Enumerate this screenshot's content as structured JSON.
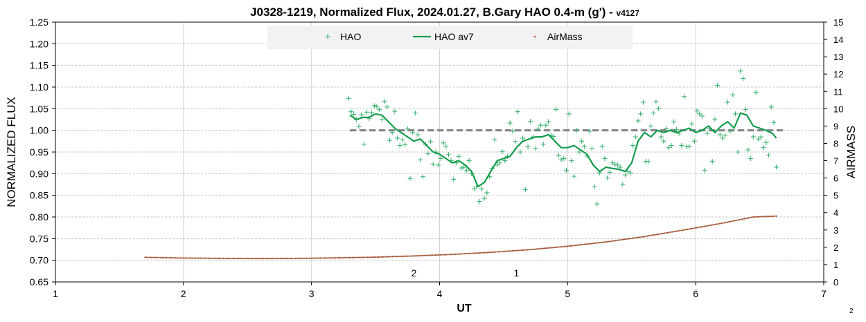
{
  "chart_data": {
    "type": "scatter",
    "title": "J0328-1219, Normalized Flux, 2024.01.27, B.Gary HAO 0.4-m (g') - ",
    "title_suffix": "v4127",
    "xlabel": "UT",
    "ylabel": "NORMALIZED FLUX",
    "y2label": "AIRMASS",
    "xlim": [
      1,
      7
    ],
    "ylim": [
      0.65,
      1.25
    ],
    "y2lim": [
      0,
      15
    ],
    "x_ticks": [
      "1",
      "2",
      "3",
      "4",
      "5",
      "6",
      "7"
    ],
    "y_ticks": [
      "0.65",
      "0.70",
      "0.75",
      "0.80",
      "0.85",
      "0.90",
      "0.95",
      "1.00",
      "1.05",
      "1.10",
      "1.15",
      "1.20",
      "1.25"
    ],
    "y2_ticks": [
      "0",
      "1",
      "2",
      "3",
      "4",
      "5",
      "6",
      "7",
      "8",
      "9",
      "10",
      "11",
      "12",
      "13",
      "14",
      "15"
    ],
    "grid": true,
    "legend_position": "top",
    "colors": {
      "hao": "#3cb371",
      "hao_av7": "#129c4b",
      "airmass": "#a0522d",
      "reference": "#808080"
    },
    "series": [
      {
        "name": "HAO",
        "marker": "plus",
        "points": [
          [
            3.29,
            1.074
          ],
          [
            3.31,
            1.043
          ],
          [
            3.33,
            1.037
          ],
          [
            3.35,
            1.025
          ],
          [
            3.37,
            1.009
          ],
          [
            3.39,
            1.036
          ],
          [
            3.41,
            0.968
          ],
          [
            3.43,
            1.042
          ],
          [
            3.45,
            1.027
          ],
          [
            3.47,
            1.041
          ],
          [
            3.49,
            1.057
          ],
          [
            3.51,
            1.055
          ],
          [
            3.53,
            1.048
          ],
          [
            3.55,
            1.025
          ],
          [
            3.57,
            1.067
          ],
          [
            3.59,
            1.054
          ],
          [
            3.61,
            0.977
          ],
          [
            3.63,
            0.995
          ],
          [
            3.65,
            1.044
          ],
          [
            3.67,
            0.982
          ],
          [
            3.69,
            0.965
          ],
          [
            3.71,
            0.978
          ],
          [
            3.73,
            0.967
          ],
          [
            3.75,
            1.004
          ],
          [
            3.77,
            0.889
          ],
          [
            3.79,
            0.995
          ],
          [
            3.81,
            1.04
          ],
          [
            3.83,
            0.99
          ],
          [
            3.85,
            0.932
          ],
          [
            3.87,
            0.893
          ],
          [
            3.89,
            0.968
          ],
          [
            3.91,
            0.946
          ],
          [
            3.93,
            0.974
          ],
          [
            3.95,
            0.922
          ],
          [
            3.97,
            0.95
          ],
          [
            3.99,
            0.92
          ],
          [
            4.01,
            0.935
          ],
          [
            4.03,
            0.971
          ],
          [
            4.05,
            0.963
          ],
          [
            4.07,
            0.944
          ],
          [
            4.09,
            0.93
          ],
          [
            4.11,
            0.887
          ],
          [
            4.13,
            0.925
          ],
          [
            4.15,
            0.94
          ],
          [
            4.17,
            0.913
          ],
          [
            4.19,
            0.915
          ],
          [
            4.21,
            0.907
          ],
          [
            4.23,
            0.93
          ],
          [
            4.25,
            0.9
          ],
          [
            4.27,
            0.865
          ],
          [
            4.29,
            0.87
          ],
          [
            4.31,
            0.836
          ],
          [
            4.33,
            0.865
          ],
          [
            4.35,
            0.843
          ],
          [
            4.37,
            0.856
          ],
          [
            4.39,
            0.893
          ],
          [
            4.41,
            0.912
          ],
          [
            4.43,
            0.978
          ],
          [
            4.45,
            0.92
          ],
          [
            4.47,
            0.925
          ],
          [
            4.49,
            0.951
          ],
          [
            4.51,
            0.93
          ],
          [
            4.53,
            0.94
          ],
          [
            4.55,
            1.017
          ],
          [
            4.57,
            0.998
          ],
          [
            4.59,
            0.974
          ],
          [
            4.61,
            1.043
          ],
          [
            4.63,
            0.95
          ],
          [
            4.65,
            0.982
          ],
          [
            4.67,
            0.863
          ],
          [
            4.69,
            0.962
          ],
          [
            4.71,
            1.021
          ],
          [
            4.73,
            0.985
          ],
          [
            4.75,
            0.958
          ],
          [
            4.77,
            1.003
          ],
          [
            4.79,
            1.012
          ],
          [
            4.81,
            0.968
          ],
          [
            4.83,
            1.012
          ],
          [
            4.85,
            1.02
          ],
          [
            4.87,
            0.989
          ],
          [
            4.89,
            0.986
          ],
          [
            4.91,
            1.048
          ],
          [
            4.93,
            0.942
          ],
          [
            4.95,
            0.932
          ],
          [
            4.97,
            0.935
          ],
          [
            4.99,
            0.908
          ],
          [
            5.01,
            1.038
          ],
          [
            5.03,
            0.93
          ],
          [
            5.05,
            0.894
          ],
          [
            5.07,
            1.0
          ],
          [
            5.09,
            0.95
          ],
          [
            5.11,
            0.975
          ],
          [
            5.13,
            0.962
          ],
          [
            5.15,
            0.941
          ],
          [
            5.17,
            0.998
          ],
          [
            5.19,
            0.958
          ],
          [
            5.21,
            0.87
          ],
          [
            5.23,
            0.83
          ],
          [
            5.25,
            0.902
          ],
          [
            5.27,
            0.963
          ],
          [
            5.29,
            0.935
          ],
          [
            5.31,
            0.89
          ],
          [
            5.33,
            0.903
          ],
          [
            5.35,
            0.925
          ],
          [
            5.37,
            0.921
          ],
          [
            5.39,
            0.92
          ],
          [
            5.41,
            0.915
          ],
          [
            5.43,
            0.875
          ],
          [
            5.45,
            0.897
          ],
          [
            5.47,
            0.905
          ],
          [
            5.49,
            0.902
          ],
          [
            5.51,
            0.965
          ],
          [
            5.53,
            0.985
          ],
          [
            5.55,
            1.022
          ],
          [
            5.57,
            1.038
          ],
          [
            5.59,
            1.065
          ],
          [
            5.61,
            0.928
          ],
          [
            5.63,
            0.928
          ],
          [
            5.65,
            1.01
          ],
          [
            5.67,
            1.04
          ],
          [
            5.69,
            1.066
          ],
          [
            5.71,
            1.05
          ],
          [
            5.73,
            0.985
          ],
          [
            5.75,
            0.975
          ],
          [
            5.77,
            1.005
          ],
          [
            5.79,
            0.96
          ],
          [
            5.81,
            0.965
          ],
          [
            5.83,
            1.02
          ],
          [
            5.85,
            1.002
          ],
          [
            5.87,
            0.993
          ],
          [
            5.89,
            0.965
          ],
          [
            5.91,
            1.078
          ],
          [
            5.93,
            0.962
          ],
          [
            5.95,
            0.963
          ],
          [
            5.97,
            1.015
          ],
          [
            5.99,
            0.975
          ],
          [
            6.01,
            1.045
          ],
          [
            6.03,
            1.038
          ],
          [
            6.05,
            1.033
          ],
          [
            6.07,
            0.908
          ],
          [
            6.09,
            0.993
          ],
          [
            6.11,
            1.005
          ],
          [
            6.13,
            0.928
          ],
          [
            6.15,
            1.026
          ],
          [
            6.17,
            1.104
          ],
          [
            6.19,
            0.99
          ],
          [
            6.21,
            0.982
          ],
          [
            6.23,
            0.989
          ],
          [
            6.25,
            1.065
          ],
          [
            6.27,
            0.998
          ],
          [
            6.29,
            1.082
          ],
          [
            6.31,
            1.038
          ],
          [
            6.33,
            0.95
          ],
          [
            6.35,
            1.137
          ],
          [
            6.37,
            1.12
          ],
          [
            6.39,
            1.048
          ],
          [
            6.41,
            0.955
          ],
          [
            6.43,
            0.935
          ],
          [
            6.45,
            0.985
          ],
          [
            6.47,
            1.088
          ],
          [
            6.49,
            0.98
          ],
          [
            6.51,
            0.985
          ],
          [
            6.53,
            0.96
          ],
          [
            6.55,
            0.972
          ],
          [
            6.57,
            0.943
          ],
          [
            6.59,
            1.054
          ],
          [
            6.61,
            1.018
          ],
          [
            6.63,
            0.915
          ]
        ]
      },
      {
        "name": "HAO av7",
        "marker": "line",
        "points": [
          [
            3.3,
            1.035
          ],
          [
            3.35,
            1.025
          ],
          [
            3.4,
            1.03
          ],
          [
            3.45,
            1.03
          ],
          [
            3.5,
            1.038
          ],
          [
            3.55,
            1.035
          ],
          [
            3.6,
            1.02
          ],
          [
            3.65,
            1.005
          ],
          [
            3.7,
            0.995
          ],
          [
            3.75,
            0.985
          ],
          [
            3.8,
            0.975
          ],
          [
            3.85,
            0.98
          ],
          [
            3.9,
            0.965
          ],
          [
            3.95,
            0.95
          ],
          [
            4.0,
            0.945
          ],
          [
            4.05,
            0.935
          ],
          [
            4.1,
            0.925
          ],
          [
            4.15,
            0.93
          ],
          [
            4.2,
            0.92
          ],
          [
            4.25,
            0.905
          ],
          [
            4.3,
            0.87
          ],
          [
            4.35,
            0.88
          ],
          [
            4.4,
            0.905
          ],
          [
            4.45,
            0.93
          ],
          [
            4.5,
            0.935
          ],
          [
            4.55,
            0.94
          ],
          [
            4.6,
            0.96
          ],
          [
            4.65,
            0.975
          ],
          [
            4.7,
            0.98
          ],
          [
            4.75,
            0.985
          ],
          [
            4.8,
            0.985
          ],
          [
            4.85,
            0.99
          ],
          [
            4.9,
            0.975
          ],
          [
            4.95,
            0.96
          ],
          [
            5.0,
            0.96
          ],
          [
            5.05,
            0.965
          ],
          [
            5.1,
            0.955
          ],
          [
            5.15,
            0.945
          ],
          [
            5.2,
            0.92
          ],
          [
            5.25,
            0.905
          ],
          [
            5.3,
            0.915
          ],
          [
            5.35,
            0.912
          ],
          [
            5.4,
            0.91
          ],
          [
            5.45,
            0.905
          ],
          [
            5.5,
            0.925
          ],
          [
            5.55,
            0.975
          ],
          [
            5.6,
            0.995
          ],
          [
            5.65,
            0.985
          ],
          [
            5.7,
            1.0
          ],
          [
            5.75,
            0.995
          ],
          [
            5.8,
            1.0
          ],
          [
            5.85,
            0.995
          ],
          [
            5.9,
            1.0
          ],
          [
            5.95,
            1.005
          ],
          [
            6.0,
            0.995
          ],
          [
            6.05,
            1.0
          ],
          [
            6.1,
            1.01
          ],
          [
            6.15,
            0.995
          ],
          [
            6.2,
            1.01
          ],
          [
            6.25,
            1.02
          ],
          [
            6.3,
            1.005
          ],
          [
            6.35,
            1.04
          ],
          [
            6.4,
            1.035
          ],
          [
            6.45,
            1.01
          ],
          [
            6.5,
            1.005
          ],
          [
            6.55,
            1.0
          ],
          [
            6.6,
            0.993
          ],
          [
            6.63,
            0.982
          ]
        ]
      },
      {
        "name": "AirMass",
        "marker": "dot",
        "axis": "right",
        "points": [
          [
            1.7,
            1.42
          ],
          [
            2.0,
            1.38
          ],
          [
            2.3,
            1.36
          ],
          [
            2.6,
            1.35
          ],
          [
            2.9,
            1.36
          ],
          [
            3.2,
            1.39
          ],
          [
            3.5,
            1.43
          ],
          [
            3.8,
            1.5
          ],
          [
            4.1,
            1.59
          ],
          [
            4.4,
            1.71
          ],
          [
            4.7,
            1.86
          ],
          [
            5.0,
            2.06
          ],
          [
            5.3,
            2.31
          ],
          [
            5.6,
            2.62
          ],
          [
            5.9,
            2.99
          ],
          [
            6.2,
            3.38
          ],
          [
            6.45,
            3.75
          ],
          [
            6.63,
            3.8
          ]
        ]
      }
    ],
    "reference_line": {
      "y": 1.0,
      "x_start": 3.3,
      "x_end": 6.7
    },
    "annotations": [
      {
        "text": "2",
        "x": 3.8,
        "y": 0.67
      },
      {
        "text": "1",
        "x": 4.6,
        "y": 0.67
      }
    ],
    "corner_note": "2"
  }
}
